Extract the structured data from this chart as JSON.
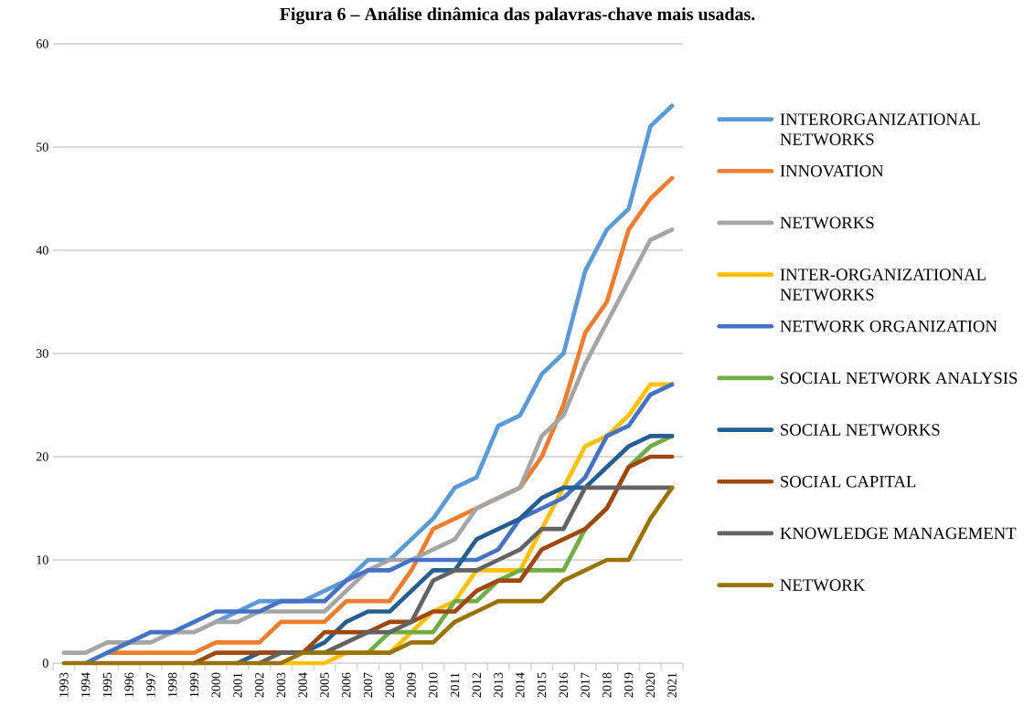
{
  "chart_data": {
    "type": "line",
    "title": "Figura 6 – Análise dinâmica das palavras-chave mais usadas.",
    "categories": [
      "1993",
      "1994",
      "1995",
      "1996",
      "1997",
      "1998",
      "1999",
      "2000",
      "2001",
      "2002",
      "2003",
      "2004",
      "2005",
      "2006",
      "2007",
      "2008",
      "2009",
      "2010",
      "2011",
      "2012",
      "2013",
      "2014",
      "2015",
      "2016",
      "2017",
      "2018",
      "2019",
      "2020",
      "2021"
    ],
    "series": [
      {
        "name": "INTERORGANIZATIONAL NETWORKS",
        "color": "#5b9bd5",
        "values": [
          null,
          null,
          null,
          null,
          null,
          null,
          null,
          4,
          5,
          6,
          6,
          6,
          7,
          8,
          10,
          10,
          12,
          14,
          17,
          18,
          23,
          24,
          28,
          30,
          38,
          42,
          44,
          52,
          54
        ]
      },
      {
        "name": "INNOVATION",
        "color": "#ed7d31",
        "values": [
          null,
          null,
          1,
          1,
          1,
          1,
          1,
          2,
          2,
          2,
          4,
          4,
          4,
          6,
          6,
          6,
          9,
          13,
          14,
          15,
          16,
          17,
          20,
          25,
          32,
          35,
          42,
          45,
          47
        ]
      },
      {
        "name": "NETWORKS",
        "color": "#a5a5a5",
        "values": [
          1,
          1,
          2,
          2,
          2,
          3,
          3,
          4,
          4,
          5,
          5,
          5,
          5,
          7,
          9,
          10,
          10,
          11,
          12,
          15,
          16,
          17,
          22,
          24,
          29,
          33,
          37,
          41,
          42
        ]
      },
      {
        "name": "INTER-ORGANIZATIONAL NETWORKS",
        "color": "#ffc000",
        "values": [
          null,
          null,
          null,
          null,
          null,
          null,
          null,
          null,
          null,
          null,
          0,
          0,
          0,
          1,
          1,
          1,
          3,
          5,
          6,
          9,
          9,
          9,
          13,
          17,
          21,
          22,
          24,
          27,
          27
        ]
      },
      {
        "name": "NETWORK ORGANIZATION",
        "color": "#4472c4",
        "values": [
          null,
          0,
          1,
          2,
          3,
          3,
          4,
          5,
          5,
          5,
          6,
          6,
          6,
          8,
          9,
          9,
          10,
          10,
          10,
          10,
          11,
          14,
          15,
          16,
          18,
          22,
          23,
          26,
          27
        ]
      },
      {
        "name": "SOCIAL NETWORK ANALYSIS",
        "color": "#70ad47",
        "values": [
          null,
          null,
          null,
          null,
          null,
          null,
          null,
          null,
          null,
          null,
          null,
          null,
          null,
          null,
          1,
          3,
          3,
          3,
          6,
          6,
          8,
          9,
          9,
          9,
          13,
          15,
          19,
          21,
          22
        ]
      },
      {
        "name": "SOCIAL NETWORKS",
        "color": "#255e91",
        "values": [
          null,
          null,
          null,
          null,
          null,
          null,
          null,
          null,
          0,
          1,
          1,
          1,
          2,
          4,
          5,
          5,
          7,
          9,
          9,
          12,
          13,
          14,
          16,
          17,
          17,
          19,
          21,
          22,
          22
        ]
      },
      {
        "name": "SOCIAL CAPITAL",
        "color": "#9e480e",
        "values": [
          null,
          null,
          null,
          null,
          null,
          null,
          0,
          1,
          1,
          1,
          1,
          1,
          3,
          3,
          3,
          4,
          4,
          5,
          5,
          7,
          8,
          8,
          11,
          12,
          13,
          15,
          19,
          20,
          20
        ]
      },
      {
        "name": "KNOWLEDGE MANAGEMENT",
        "color": "#636363",
        "values": [
          null,
          null,
          null,
          null,
          null,
          null,
          null,
          null,
          null,
          0,
          1,
          1,
          1,
          2,
          3,
          3,
          4,
          8,
          9,
          9,
          10,
          11,
          13,
          13,
          17,
          17,
          17,
          17,
          17
        ]
      },
      {
        "name": "NETWORK",
        "color": "#997300",
        "values": [
          0,
          0,
          0,
          0,
          0,
          0,
          0,
          0,
          0,
          0,
          0,
          1,
          1,
          1,
          1,
          1,
          2,
          2,
          4,
          5,
          6,
          6,
          6,
          8,
          9,
          10,
          10,
          14,
          17
        ]
      }
    ],
    "ylim": [
      0,
      60
    ],
    "yticks": [
      0,
      10,
      20,
      30,
      40,
      50,
      60
    ],
    "grid": "y",
    "legend": "right",
    "marker": "none",
    "line_style": "solid"
  }
}
